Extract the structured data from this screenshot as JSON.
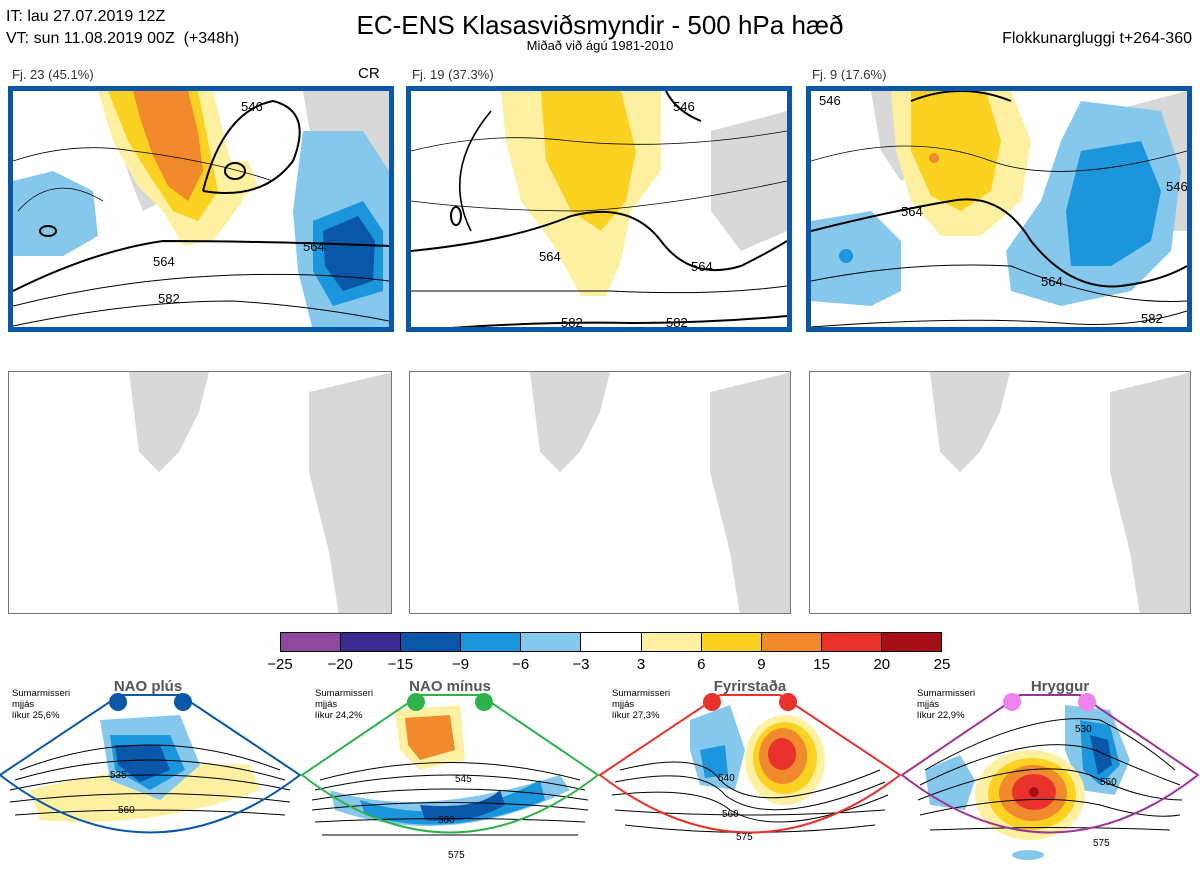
{
  "header": {
    "it_line": "IT: lau 27.07.2019 12Z",
    "vt_line": "VT: sun 11.08.2019 00Z  (+348h)",
    "title": "EC-ENS Klasasviðsmyndir - 500 hPa hæð",
    "subtitle": "Miðað við ágú 1981-2010",
    "window": "Flokkunargluggi t+264-360"
  },
  "clusters": [
    {
      "label": "Fj. 23 (45.1%)",
      "tag": "CR",
      "contour_labels": [
        "546",
        "564",
        "564",
        "582"
      ]
    },
    {
      "label": "Fj. 19 (37.3%)",
      "tag": "",
      "contour_labels": [
        "546",
        "564",
        "564",
        "582",
        "582"
      ]
    },
    {
      "label": "Fj. 9 (17.6%)",
      "tag": "",
      "contour_labels": [
        "546",
        "564",
        "564",
        "582",
        "546"
      ]
    }
  ],
  "colorbar": {
    "ticks": [
      "−25",
      "−20",
      "−15",
      "−9",
      "−6",
      "−3",
      "3",
      "6",
      "9",
      "15",
      "20",
      "25"
    ],
    "colors": [
      "#8e4a9e",
      "#3d2a90",
      "#0a56a8",
      "#1b96dc",
      "#86c8ec",
      "#ffffff",
      "#fdf0a0",
      "#fbd221",
      "#f08a2c",
      "#e8322b",
      "#a50f15"
    ]
  },
  "regimes": [
    {
      "name": "NAO plús",
      "meta": "Sumarmisseri\nmjjás\nlíkur 25,6%",
      "color": "#0a56a8",
      "contour_labels": [
        "535",
        "560"
      ]
    },
    {
      "name": "NAO mínus",
      "meta": "Sumarmisseri\nmjjás\nlíkur 24,2%",
      "color": "#2db34a",
      "contour_labels": [
        "545",
        "560",
        "575"
      ]
    },
    {
      "name": "Fyrirstaða",
      "meta": "Sumarmisseri\nmjjás\nlíkur 27,3%",
      "color": "#e8322b",
      "contour_labels": [
        "540",
        "560",
        "575"
      ]
    },
    {
      "name": "Hryggur",
      "meta": "Sumarmisseri\nmjjás\nlíkur 22,9%",
      "color": "#9b3595",
      "dot_color": "#ee82ee",
      "contour_labels": [
        "530",
        "550",
        "575"
      ]
    }
  ]
}
